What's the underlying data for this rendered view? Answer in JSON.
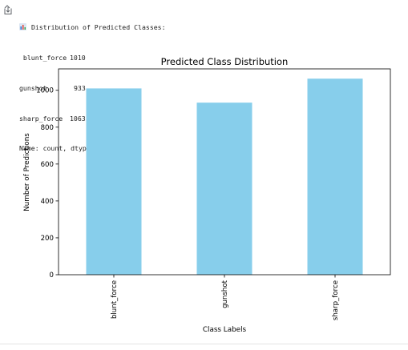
{
  "output": {
    "header_emoji": "bar-chart-icon",
    "header_text": "Distribution of Predicted Classes:",
    "rows": [
      {
        "label": " blunt_force",
        "value": "1010"
      },
      {
        "label": "gunshot",
        "value": "933"
      },
      {
        "label": "sharp_force",
        "value": "1063"
      }
    ],
    "footer": "Name: count, dtype: int64"
  },
  "chart_data": {
    "type": "bar",
    "title": "Predicted Class Distribution",
    "xlabel": "Class Labels",
    "ylabel": "Number of Predictions",
    "categories": [
      "blunt_force",
      "gunshot",
      "sharp_force"
    ],
    "values": [
      1010,
      933,
      1063
    ],
    "ylim": [
      0,
      1116
    ],
    "yticks": [
      0,
      200,
      400,
      600,
      800,
      1000
    ],
    "bar_color": "#87ceeb",
    "grid": false,
    "legend": "none"
  }
}
